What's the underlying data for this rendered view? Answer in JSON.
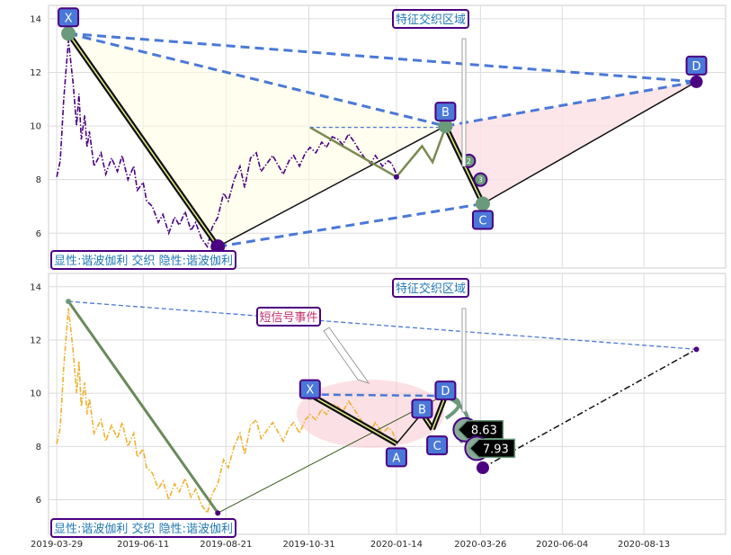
{
  "chart_data": [
    {
      "type": "line",
      "panel": "top",
      "ylim": [
        4.7,
        14.5
      ],
      "yticks": [
        6,
        8,
        10,
        12,
        14
      ],
      "grid": true,
      "x_range": [
        "2019-03-22",
        "2020-10-22"
      ],
      "series": [
        {
          "color": "#4b0082",
          "style": "dash-dot",
          "points": [
            [
              "2019-03-29",
              8.1
            ],
            [
              "2019-04-01",
              8.7
            ],
            [
              "2019-04-04",
              11.0
            ],
            [
              "2019-04-08",
              13.2
            ],
            [
              "2019-04-10",
              12.4
            ],
            [
              "2019-04-12",
              11.6
            ],
            [
              "2019-04-15",
              10.0
            ],
            [
              "2019-04-17",
              11.2
            ],
            [
              "2019-04-19",
              9.5
            ],
            [
              "2019-04-22",
              10.4
            ],
            [
              "2019-04-24",
              9.2
            ],
            [
              "2019-04-26",
              9.8
            ],
            [
              "2019-04-30",
              8.5
            ],
            [
              "2019-05-06",
              9.0
            ],
            [
              "2019-05-10",
              8.2
            ],
            [
              "2019-05-15",
              8.8
            ],
            [
              "2019-05-20",
              8.3
            ],
            [
              "2019-05-24",
              8.9
            ],
            [
              "2019-05-29",
              8.0
            ],
            [
              "2019-06-03",
              8.5
            ],
            [
              "2019-06-06",
              7.6
            ],
            [
              "2019-06-11",
              7.9
            ],
            [
              "2019-06-14",
              7.2
            ],
            [
              "2019-06-19",
              7.0
            ],
            [
              "2019-06-24",
              6.4
            ],
            [
              "2019-06-28",
              6.7
            ],
            [
              "2019-07-03",
              6.0
            ],
            [
              "2019-07-08",
              6.6
            ],
            [
              "2019-07-12",
              6.3
            ],
            [
              "2019-07-17",
              6.8
            ],
            [
              "2019-07-22",
              6.1
            ],
            [
              "2019-07-26",
              6.4
            ],
            [
              "2019-07-31",
              5.8
            ],
            [
              "2019-08-05",
              5.5
            ],
            [
              "2019-08-09",
              6.2
            ],
            [
              "2019-08-14",
              6.6
            ],
            [
              "2019-08-19",
              7.5
            ],
            [
              "2019-08-23",
              7.2
            ],
            [
              "2019-08-28",
              8.0
            ],
            [
              "2019-09-02",
              8.5
            ],
            [
              "2019-09-06",
              7.7
            ],
            [
              "2019-09-11",
              8.8
            ],
            [
              "2019-09-16",
              9.0
            ],
            [
              "2019-09-20",
              8.3
            ],
            [
              "2019-09-25",
              8.6
            ],
            [
              "2019-09-30",
              8.9
            ],
            [
              "2019-10-09",
              8.2
            ],
            [
              "2019-10-14",
              8.7
            ],
            [
              "2019-10-18",
              8.9
            ],
            [
              "2019-10-23",
              8.5
            ],
            [
              "2019-10-28",
              9.0
            ],
            [
              "2019-11-01",
              9.2
            ],
            [
              "2019-11-06",
              9.0
            ],
            [
              "2019-11-11",
              9.4
            ],
            [
              "2019-11-15",
              9.2
            ],
            [
              "2019-11-20",
              9.6
            ],
            [
              "2019-11-25",
              9.5
            ],
            [
              "2019-11-29",
              9.3
            ],
            [
              "2019-12-04",
              9.7
            ],
            [
              "2019-12-09",
              9.4
            ],
            [
              "2019-12-13",
              9.1
            ],
            [
              "2019-12-18",
              8.8
            ],
            [
              "2019-12-23",
              8.6
            ],
            [
              "2019-12-27",
              8.9
            ],
            [
              "2020-01-02",
              8.5
            ],
            [
              "2020-01-07",
              8.7
            ],
            [
              "2020-01-10",
              8.6
            ],
            [
              "2020-01-14",
              8.2
            ]
          ]
        }
      ],
      "pattern_points": [
        {
          "label": "X",
          "date": "2019-04-08",
          "value": 13.45
        },
        {
          "label": "",
          "date": "2019-08-14",
          "value": 5.5
        },
        {
          "label": "B",
          "date": "2020-02-25",
          "value": 10.0
        },
        {
          "label": "C",
          "date": "2020-03-28",
          "value": 7.1
        },
        {
          "label": "D",
          "date": "2020-09-27",
          "value": 11.65
        }
      ],
      "small_pattern": [
        {
          "date": "2019-11-01",
          "value": 9.95
        },
        {
          "date": "2020-01-14",
          "value": 8.1
        },
        {
          "date": "2020-02-05",
          "value": 9.25
        },
        {
          "date": "2020-02-14",
          "value": 8.65
        },
        {
          "date": "2020-02-25",
          "value": 9.95
        }
      ],
      "markers": [
        {
          "label": "2",
          "date": "2020-03-16",
          "value": 8.7
        },
        {
          "label": "3",
          "date": "2020-03-26",
          "value": 8.0
        }
      ],
      "annotations": [
        {
          "text": "特征交织区域",
          "color": "#1f77b4"
        },
        {
          "text": "显性:谐波伽利 交织 隐性:谐波伽利",
          "color": "#1f77b4"
        }
      ]
    },
    {
      "type": "line",
      "panel": "bottom",
      "ylim": [
        4.7,
        14.5
      ],
      "yticks": [
        6,
        8,
        10,
        12,
        14
      ],
      "grid": true,
      "x_range": [
        "2019-03-22",
        "2020-10-22"
      ],
      "xticks": [
        "2019-03-29",
        "2019-06-11",
        "2019-08-21",
        "2019-10-31",
        "2020-01-14",
        "2020-03-26",
        "2020-06-04",
        "2020-08-13"
      ],
      "series": [
        {
          "color": "#f0b030",
          "style": "dash-dot",
          "points": [
            [
              "2019-03-29",
              8.1
            ],
            [
              "2019-04-01",
              8.7
            ],
            [
              "2019-04-04",
              11.0
            ],
            [
              "2019-04-08",
              13.2
            ],
            [
              "2019-04-10",
              12.4
            ],
            [
              "2019-04-12",
              11.6
            ],
            [
              "2019-04-15",
              10.0
            ],
            [
              "2019-04-17",
              11.2
            ],
            [
              "2019-04-19",
              9.5
            ],
            [
              "2019-04-22",
              10.4
            ],
            [
              "2019-04-24",
              9.2
            ],
            [
              "2019-04-26",
              9.8
            ],
            [
              "2019-04-30",
              8.5
            ],
            [
              "2019-05-06",
              9.0
            ],
            [
              "2019-05-10",
              8.2
            ],
            [
              "2019-05-15",
              8.8
            ],
            [
              "2019-05-20",
              8.3
            ],
            [
              "2019-05-24",
              8.9
            ],
            [
              "2019-05-29",
              8.0
            ],
            [
              "2019-06-03",
              8.5
            ],
            [
              "2019-06-06",
              7.6
            ],
            [
              "2019-06-11",
              7.9
            ],
            [
              "2019-06-14",
              7.2
            ],
            [
              "2019-06-19",
              7.0
            ],
            [
              "2019-06-24",
              6.4
            ],
            [
              "2019-06-28",
              6.7
            ],
            [
              "2019-07-03",
              6.0
            ],
            [
              "2019-07-08",
              6.6
            ],
            [
              "2019-07-12",
              6.3
            ],
            [
              "2019-07-17",
              6.8
            ],
            [
              "2019-07-22",
              6.1
            ],
            [
              "2019-07-26",
              6.4
            ],
            [
              "2019-07-31",
              5.8
            ],
            [
              "2019-08-05",
              5.5
            ],
            [
              "2019-08-09",
              6.2
            ],
            [
              "2019-08-14",
              6.6
            ],
            [
              "2019-08-19",
              7.5
            ],
            [
              "2019-08-23",
              7.2
            ],
            [
              "2019-08-28",
              8.0
            ],
            [
              "2019-09-02",
              8.5
            ],
            [
              "2019-09-06",
              7.7
            ],
            [
              "2019-09-11",
              8.8
            ],
            [
              "2019-09-16",
              9.0
            ],
            [
              "2019-09-20",
              8.3
            ],
            [
              "2019-09-25",
              8.6
            ],
            [
              "2019-09-30",
              8.9
            ],
            [
              "2019-10-09",
              8.2
            ],
            [
              "2019-10-14",
              8.7
            ],
            [
              "2019-10-18",
              8.9
            ],
            [
              "2019-10-23",
              8.5
            ],
            [
              "2019-10-28",
              9.0
            ],
            [
              "2019-11-01",
              9.2
            ],
            [
              "2019-11-06",
              9.0
            ],
            [
              "2019-11-11",
              9.4
            ],
            [
              "2019-11-15",
              9.2
            ],
            [
              "2019-11-20",
              9.6
            ],
            [
              "2019-11-25",
              9.5
            ],
            [
              "2019-11-29",
              9.3
            ],
            [
              "2019-12-04",
              9.7
            ],
            [
              "2019-12-09",
              9.4
            ],
            [
              "2019-12-13",
              9.1
            ],
            [
              "2019-12-18",
              8.8
            ],
            [
              "2019-12-23",
              8.6
            ],
            [
              "2019-12-27",
              8.9
            ],
            [
              "2020-01-02",
              8.5
            ],
            [
              "2020-01-07",
              8.7
            ],
            [
              "2020-01-10",
              8.6
            ],
            [
              "2020-01-14",
              8.2
            ]
          ]
        }
      ],
      "pattern_points": [
        {
          "label": "X",
          "date": "2019-11-01",
          "value": 9.95
        },
        {
          "label": "A",
          "date": "2020-01-14",
          "value": 8.1
        },
        {
          "label": "B",
          "date": "2020-02-05",
          "value": 9.25
        },
        {
          "label": "C",
          "date": "2020-02-14",
          "value": 8.65
        },
        {
          "label": "D",
          "date": "2020-02-25",
          "value": 9.9
        }
      ],
      "big_pattern": [
        {
          "date": "2019-04-08",
          "value": 13.45
        },
        {
          "date": "2019-08-14",
          "value": 5.5
        },
        {
          "date": "2020-02-25",
          "value": 9.95
        },
        {
          "date": "2020-03-28",
          "value": 7.2
        },
        {
          "date": "2020-09-27",
          "value": 11.65
        }
      ],
      "value_labels": [
        {
          "text": "8.63",
          "date": "2020-03-16",
          "value": 8.63
        },
        {
          "text": "7.93",
          "date": "2020-03-26",
          "value": 7.93
        }
      ],
      "annotations": [
        {
          "text": "特征交织区域",
          "color": "#1f77b4"
        },
        {
          "text": "短信号事件",
          "color": "#c0306a"
        },
        {
          "text": "显性:谐波伽利 交织 隐性:谐波伽利",
          "color": "#1f77b4"
        }
      ]
    }
  ]
}
